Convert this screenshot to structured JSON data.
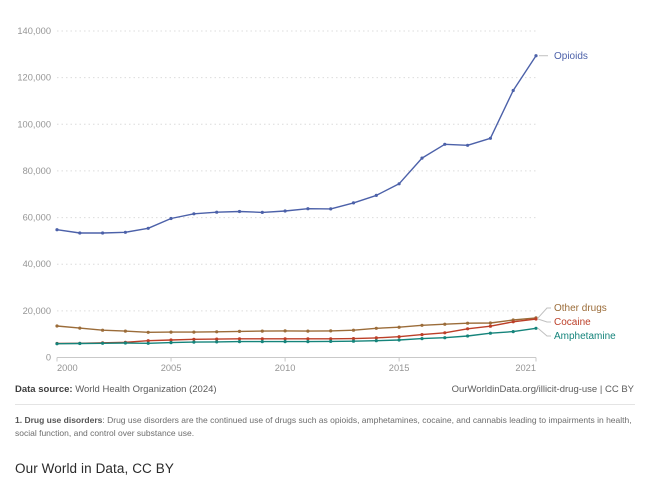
{
  "colors": {
    "opioids": "#4C61A9",
    "other_drugs": "#9B6C39",
    "cocaine": "#BC3F28",
    "amphetamine": "#15847B",
    "grid": "#dcdcdc",
    "axis": "#c9c9c9",
    "tick_text": "#959595",
    "connector": "#c0c0c0"
  },
  "chart_data": {
    "type": "line",
    "x": [
      2000,
      2001,
      2002,
      2003,
      2004,
      2005,
      2006,
      2007,
      2008,
      2009,
      2010,
      2011,
      2012,
      2013,
      2014,
      2015,
      2016,
      2017,
      2018,
      2019,
      2020,
      2021
    ],
    "series": [
      {
        "name": "Opioids",
        "color_key": "opioids",
        "values": [
          54800,
          53400,
          53400,
          53700,
          55400,
          59600,
          61600,
          62300,
          62600,
          62200,
          62800,
          63800,
          63700,
          66300,
          69500,
          74500,
          85500,
          91400,
          91000,
          94000,
          114500,
          129400
        ]
      },
      {
        "name": "Other drugs",
        "color_key": "other_drugs",
        "values": [
          13500,
          12600,
          11700,
          11300,
          10800,
          10900,
          10900,
          11000,
          11200,
          11300,
          11400,
          11300,
          11400,
          11700,
          12500,
          13000,
          13800,
          14300,
          14700,
          14800,
          16100,
          17000
        ]
      },
      {
        "name": "Cocaine",
        "color_key": "cocaine",
        "values": [
          6000,
          6100,
          6300,
          6500,
          7200,
          7500,
          7800,
          7900,
          8000,
          8000,
          8000,
          8000,
          8000,
          8100,
          8400,
          8900,
          9800,
          10600,
          12300,
          13400,
          15300,
          16500
        ]
      },
      {
        "name": "Amphetamine",
        "color_key": "amphetamine",
        "values": [
          5900,
          6000,
          6100,
          6200,
          6100,
          6400,
          6600,
          6700,
          6800,
          6800,
          6800,
          6800,
          6900,
          7000,
          7200,
          7500,
          8100,
          8500,
          9200,
          10400,
          11100,
          12500
        ]
      }
    ],
    "ylim": [
      0,
      140000
    ],
    "ytick_step": 20000,
    "xticks": [
      2000,
      2005,
      2010,
      2015,
      2021
    ],
    "grid": "dotted horizontal gridlines",
    "legend_position": "right edge, labels at line ends"
  },
  "footer": {
    "data_source_label": "Data source:",
    "data_source_value": "World Health Organization (2024)",
    "link": "OurWorldinData.org/illicit-drug-use | CC BY",
    "note_label": "1. Drug use disorders",
    "note_text": ": Drug use disorders are the continued use of drugs such as opioids, amphetamines, cocaine, and cannabis leading to impairments in health, social function, and control over substance use.",
    "caption": "Our World in Data, CC BY"
  }
}
